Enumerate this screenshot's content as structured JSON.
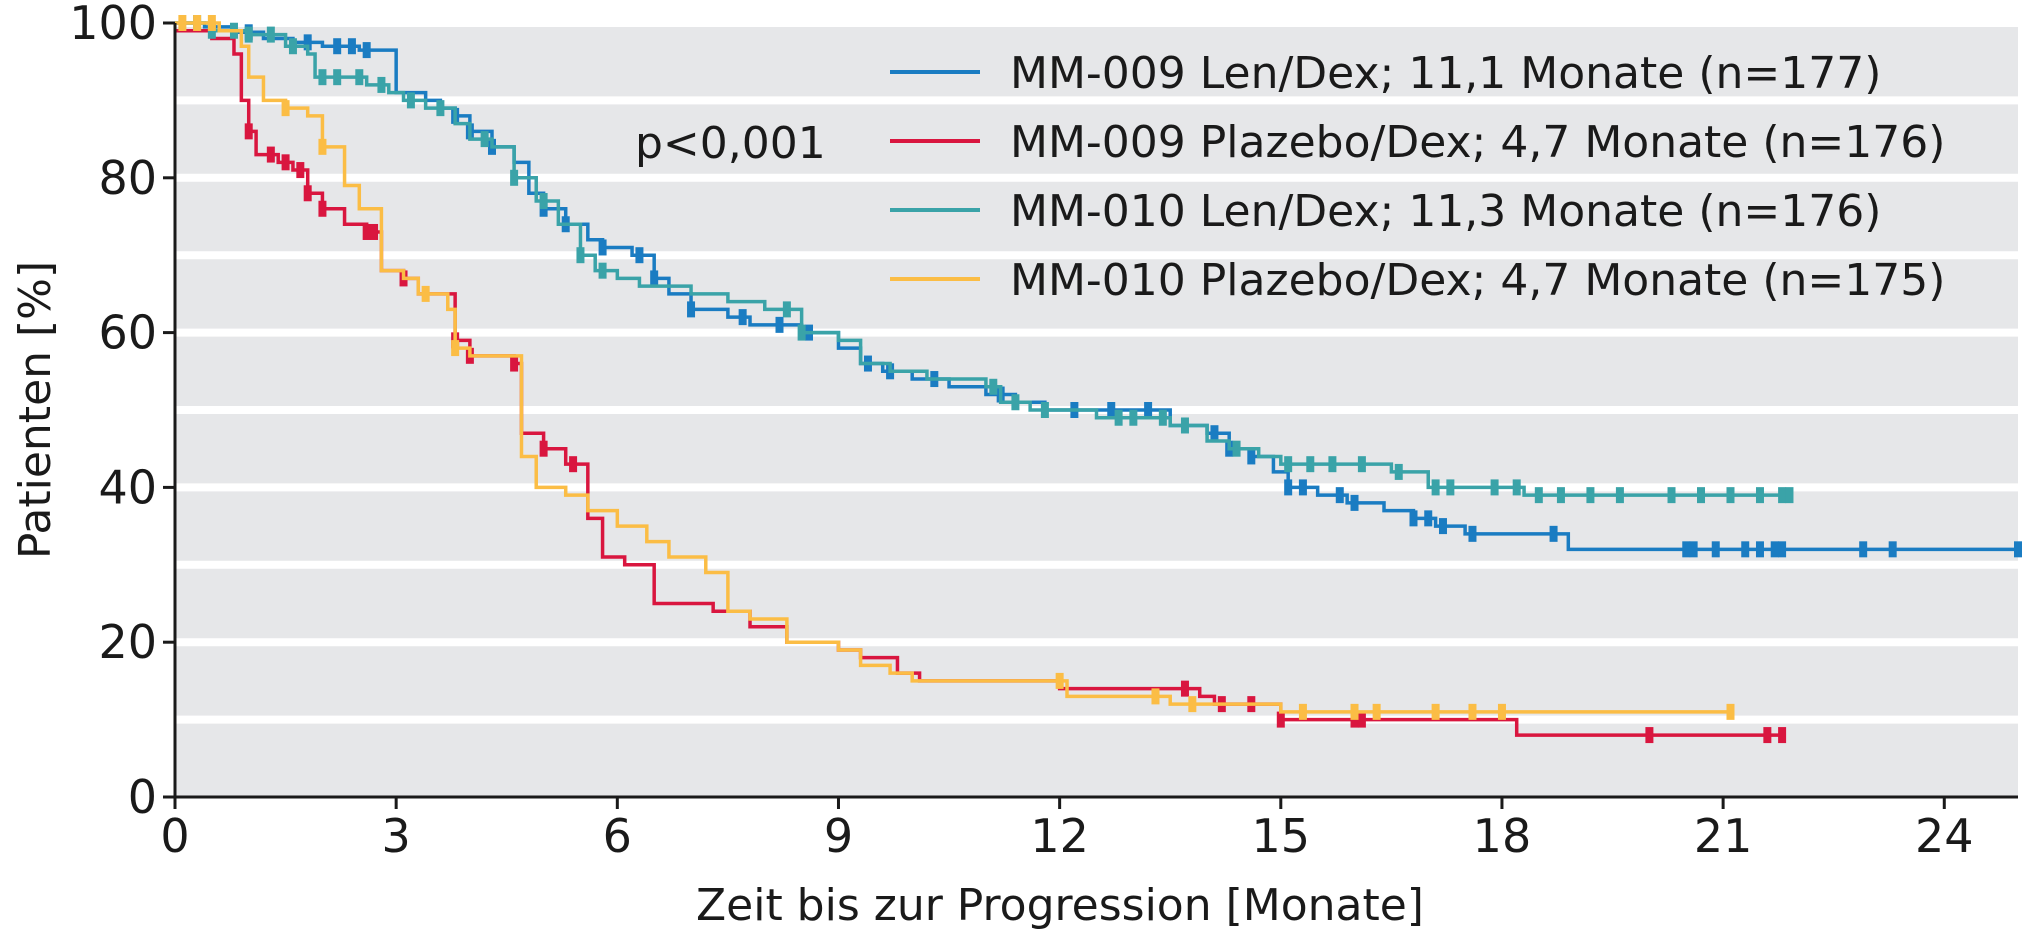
{
  "chart_data": {
    "type": "line",
    "step": true,
    "xlabel": "Zeit bis zur Progression [Monate]",
    "ylabel": "Patienten [%]",
    "xlim": [
      0,
      25
    ],
    "ylim": [
      0,
      100
    ],
    "xticks": [
      0,
      3,
      6,
      9,
      12,
      15,
      18,
      21,
      24
    ],
    "yticks": [
      0,
      20,
      40,
      60,
      80,
      100
    ],
    "grid": "horizontal bands",
    "legend_position": "top-right",
    "annotation": "p<0,001",
    "series": [
      {
        "name": "MM-009 Len/Dex; 11,1 Monate (n=177)",
        "color": "#1a7cc2",
        "points": [
          [
            0,
            100
          ],
          [
            0.4,
            99.5
          ],
          [
            0.8,
            98.8
          ],
          [
            1.2,
            98
          ],
          [
            1.6,
            97.5
          ],
          [
            2.0,
            97
          ],
          [
            2.5,
            96.5
          ],
          [
            3.0,
            95
          ],
          [
            3.0,
            91
          ],
          [
            3.4,
            90
          ],
          [
            3.6,
            89
          ],
          [
            3.8,
            88
          ],
          [
            4.0,
            86
          ],
          [
            4.3,
            84
          ],
          [
            4.6,
            82
          ],
          [
            4.8,
            78
          ],
          [
            5.0,
            76
          ],
          [
            5.3,
            74
          ],
          [
            5.6,
            72
          ],
          [
            5.8,
            71
          ],
          [
            6.2,
            70
          ],
          [
            6.5,
            67
          ],
          [
            6.7,
            65
          ],
          [
            7.0,
            63
          ],
          [
            7.5,
            62
          ],
          [
            7.8,
            61
          ],
          [
            8.5,
            60
          ],
          [
            9.0,
            58
          ],
          [
            9.3,
            56
          ],
          [
            9.6,
            55
          ],
          [
            10.0,
            54
          ],
          [
            10.5,
            53
          ],
          [
            11.0,
            52
          ],
          [
            11.4,
            51
          ],
          [
            11.8,
            50
          ],
          [
            12.4,
            50
          ],
          [
            13.0,
            50
          ],
          [
            13.5,
            48
          ],
          [
            14.0,
            47
          ],
          [
            14.3,
            45
          ],
          [
            14.6,
            44
          ],
          [
            14.9,
            42
          ],
          [
            15.1,
            40
          ],
          [
            15.5,
            39
          ],
          [
            15.9,
            38
          ],
          [
            16.4,
            37
          ],
          [
            16.8,
            36
          ],
          [
            17.1,
            35
          ],
          [
            17.5,
            34
          ],
          [
            18.2,
            34
          ],
          [
            18.6,
            34
          ],
          [
            18.9,
            32
          ],
          [
            20,
            32
          ],
          [
            21.5,
            32
          ],
          [
            23,
            32
          ],
          [
            25,
            32
          ]
        ],
        "censor_x": [
          1.0,
          1.8,
          2.2,
          2.4,
          2.6,
          3.8,
          4.0,
          4.3,
          5.0,
          5.3,
          5.8,
          6.3,
          6.5,
          7.0,
          7.7,
          8.2,
          8.6,
          9.4,
          9.7,
          10.3,
          11.2,
          12.2,
          12.7,
          13.2,
          14.1,
          14.3,
          14.6,
          15.1,
          15.3,
          15.8,
          16.0,
          16.8,
          17.0,
          17.2,
          17.6,
          18.7,
          20.5,
          20.6,
          20.9,
          21.3,
          21.5,
          21.7,
          21.8,
          22.9,
          23.3,
          25.0
        ]
      },
      {
        "name": "MM-009 Plazebo/Dex; 4,7 Monate (n=176)",
        "color": "#d9163f",
        "points": [
          [
            0,
            99
          ],
          [
            0.5,
            98
          ],
          [
            0.8,
            96
          ],
          [
            0.9,
            90
          ],
          [
            1.0,
            86
          ],
          [
            1.1,
            83
          ],
          [
            1.4,
            82
          ],
          [
            1.6,
            81
          ],
          [
            1.8,
            78
          ],
          [
            2.0,
            76
          ],
          [
            2.3,
            74
          ],
          [
            2.6,
            73
          ],
          [
            2.8,
            68
          ],
          [
            3.1,
            67
          ],
          [
            3.3,
            65
          ],
          [
            3.8,
            64
          ],
          [
            3.8,
            59
          ],
          [
            4.0,
            57
          ],
          [
            4.6,
            56
          ],
          [
            4.7,
            47
          ],
          [
            5.0,
            45
          ],
          [
            5.3,
            43
          ],
          [
            5.6,
            36
          ],
          [
            5.8,
            31
          ],
          [
            6.1,
            30
          ],
          [
            6.5,
            25
          ],
          [
            6.7,
            25
          ],
          [
            7.0,
            25
          ],
          [
            7.3,
            24
          ],
          [
            7.8,
            22
          ],
          [
            8.3,
            20
          ],
          [
            9.0,
            19
          ],
          [
            9.3,
            18
          ],
          [
            9.8,
            16
          ],
          [
            10.1,
            15
          ],
          [
            10.5,
            15
          ],
          [
            11.0,
            15
          ],
          [
            12.0,
            14
          ],
          [
            12.5,
            14
          ],
          [
            13.0,
            14
          ],
          [
            13.5,
            14
          ],
          [
            13.9,
            13
          ],
          [
            14.1,
            12
          ],
          [
            14.6,
            12
          ],
          [
            15.0,
            10
          ],
          [
            15.5,
            10
          ],
          [
            16.2,
            10
          ],
          [
            17.0,
            10
          ],
          [
            18.2,
            10
          ],
          [
            18.2,
            8
          ],
          [
            19.5,
            8
          ],
          [
            20.5,
            8
          ],
          [
            21.8,
            8
          ]
        ],
        "censor_x": [
          1.0,
          1.3,
          1.5,
          1.7,
          1.8,
          2.0,
          2.6,
          2.7,
          3.1,
          3.8,
          4.0,
          4.6,
          5.0,
          5.4,
          13.7,
          14.2,
          14.6,
          15.0,
          16.0,
          16.1,
          20.0,
          21.6,
          21.8
        ]
      },
      {
        "name": "MM-010 Len/Dex; 11,3 Monate (n=176)",
        "color": "#3aa3a8",
        "points": [
          [
            0,
            100
          ],
          [
            0.5,
            99
          ],
          [
            1.0,
            98.5
          ],
          [
            1.5,
            97
          ],
          [
            1.8,
            96
          ],
          [
            1.9,
            93
          ],
          [
            2.6,
            92
          ],
          [
            2.9,
            91
          ],
          [
            3.1,
            90
          ],
          [
            3.4,
            89
          ],
          [
            3.8,
            87
          ],
          [
            4.0,
            85
          ],
          [
            4.3,
            84
          ],
          [
            4.6,
            80
          ],
          [
            4.9,
            77
          ],
          [
            5.2,
            74
          ],
          [
            5.5,
            70
          ],
          [
            5.7,
            68
          ],
          [
            6.0,
            67
          ],
          [
            6.3,
            66
          ],
          [
            6.6,
            66
          ],
          [
            7.0,
            65
          ],
          [
            7.5,
            64
          ],
          [
            8.0,
            63
          ],
          [
            8.5,
            60
          ],
          [
            9.0,
            59
          ],
          [
            9.3,
            56
          ],
          [
            9.7,
            55
          ],
          [
            10.2,
            54
          ],
          [
            10.8,
            54
          ],
          [
            11.0,
            53
          ],
          [
            11.2,
            51
          ],
          [
            11.6,
            50
          ],
          [
            12.0,
            50
          ],
          [
            12.5,
            49
          ],
          [
            13.0,
            49
          ],
          [
            13.5,
            48
          ],
          [
            14.0,
            46
          ],
          [
            14.3,
            45
          ],
          [
            14.7,
            44
          ],
          [
            15.0,
            43
          ],
          [
            15.5,
            43
          ],
          [
            16.0,
            43
          ],
          [
            16.5,
            42
          ],
          [
            16.9,
            42
          ],
          [
            17.0,
            40
          ],
          [
            17.5,
            40
          ],
          [
            18.0,
            40
          ],
          [
            18.3,
            39
          ],
          [
            19,
            39
          ],
          [
            20,
            39
          ],
          [
            21,
            39
          ],
          [
            21.9,
            39
          ]
        ],
        "censor_x": [
          0.3,
          0.5,
          0.8,
          1.0,
          1.3,
          1.6,
          2.0,
          2.2,
          2.5,
          2.8,
          3.2,
          3.6,
          4.2,
          4.6,
          5.0,
          5.5,
          5.8,
          8.3,
          8.5,
          11.1,
          11.4,
          11.8,
          12.8,
          13.0,
          13.4,
          13.7,
          14.4,
          15.1,
          15.4,
          15.7,
          16.1,
          16.6,
          17.1,
          17.3,
          17.9,
          18.2,
          18.5,
          18.8,
          19.2,
          19.6,
          20.3,
          20.7,
          21.1,
          21.5,
          21.8,
          21.9
        ]
      },
      {
        "name": "MM-010 Plazebo/Dex; 4,7 Monate (n=175)",
        "color": "#fbbd45",
        "points": [
          [
            0,
            100
          ],
          [
            0.6,
            99
          ],
          [
            0.9,
            97
          ],
          [
            1.0,
            93
          ],
          [
            1.2,
            90
          ],
          [
            1.5,
            89
          ],
          [
            1.8,
            88
          ],
          [
            2.0,
            84
          ],
          [
            2.3,
            79
          ],
          [
            2.5,
            76
          ],
          [
            2.8,
            74
          ],
          [
            2.8,
            68
          ],
          [
            3.1,
            67
          ],
          [
            3.3,
            65
          ],
          [
            3.7,
            63
          ],
          [
            3.8,
            58
          ],
          [
            4.0,
            57
          ],
          [
            4.7,
            57
          ],
          [
            4.7,
            44
          ],
          [
            4.9,
            40
          ],
          [
            5.3,
            39
          ],
          [
            5.6,
            37
          ],
          [
            6.0,
            35
          ],
          [
            6.4,
            33
          ],
          [
            6.7,
            31
          ],
          [
            7.2,
            29
          ],
          [
            7.5,
            29
          ],
          [
            7.5,
            24
          ],
          [
            7.8,
            23
          ],
          [
            8.3,
            20
          ],
          [
            8.7,
            20
          ],
          [
            9.0,
            19
          ],
          [
            9.3,
            17
          ],
          [
            9.7,
            16
          ],
          [
            10.0,
            15
          ],
          [
            10.5,
            15
          ],
          [
            11.0,
            15
          ],
          [
            12.0,
            15
          ],
          [
            12.1,
            13
          ],
          [
            12.5,
            13
          ],
          [
            13.0,
            13
          ],
          [
            13.5,
            12
          ],
          [
            13.9,
            12
          ],
          [
            14.5,
            12
          ],
          [
            15.0,
            11
          ],
          [
            15.5,
            11
          ],
          [
            16.0,
            11
          ],
          [
            17.0,
            11
          ],
          [
            18.0,
            11
          ],
          [
            19.0,
            11
          ],
          [
            20.0,
            11
          ],
          [
            21.1,
            11
          ]
        ],
        "censor_x": [
          0.1,
          0.3,
          0.5,
          1.5,
          2.0,
          3.4,
          3.8,
          12.0,
          13.3,
          13.8,
          15.3,
          16.0,
          16.3,
          17.1,
          17.6,
          18.0,
          21.1
        ]
      }
    ]
  }
}
